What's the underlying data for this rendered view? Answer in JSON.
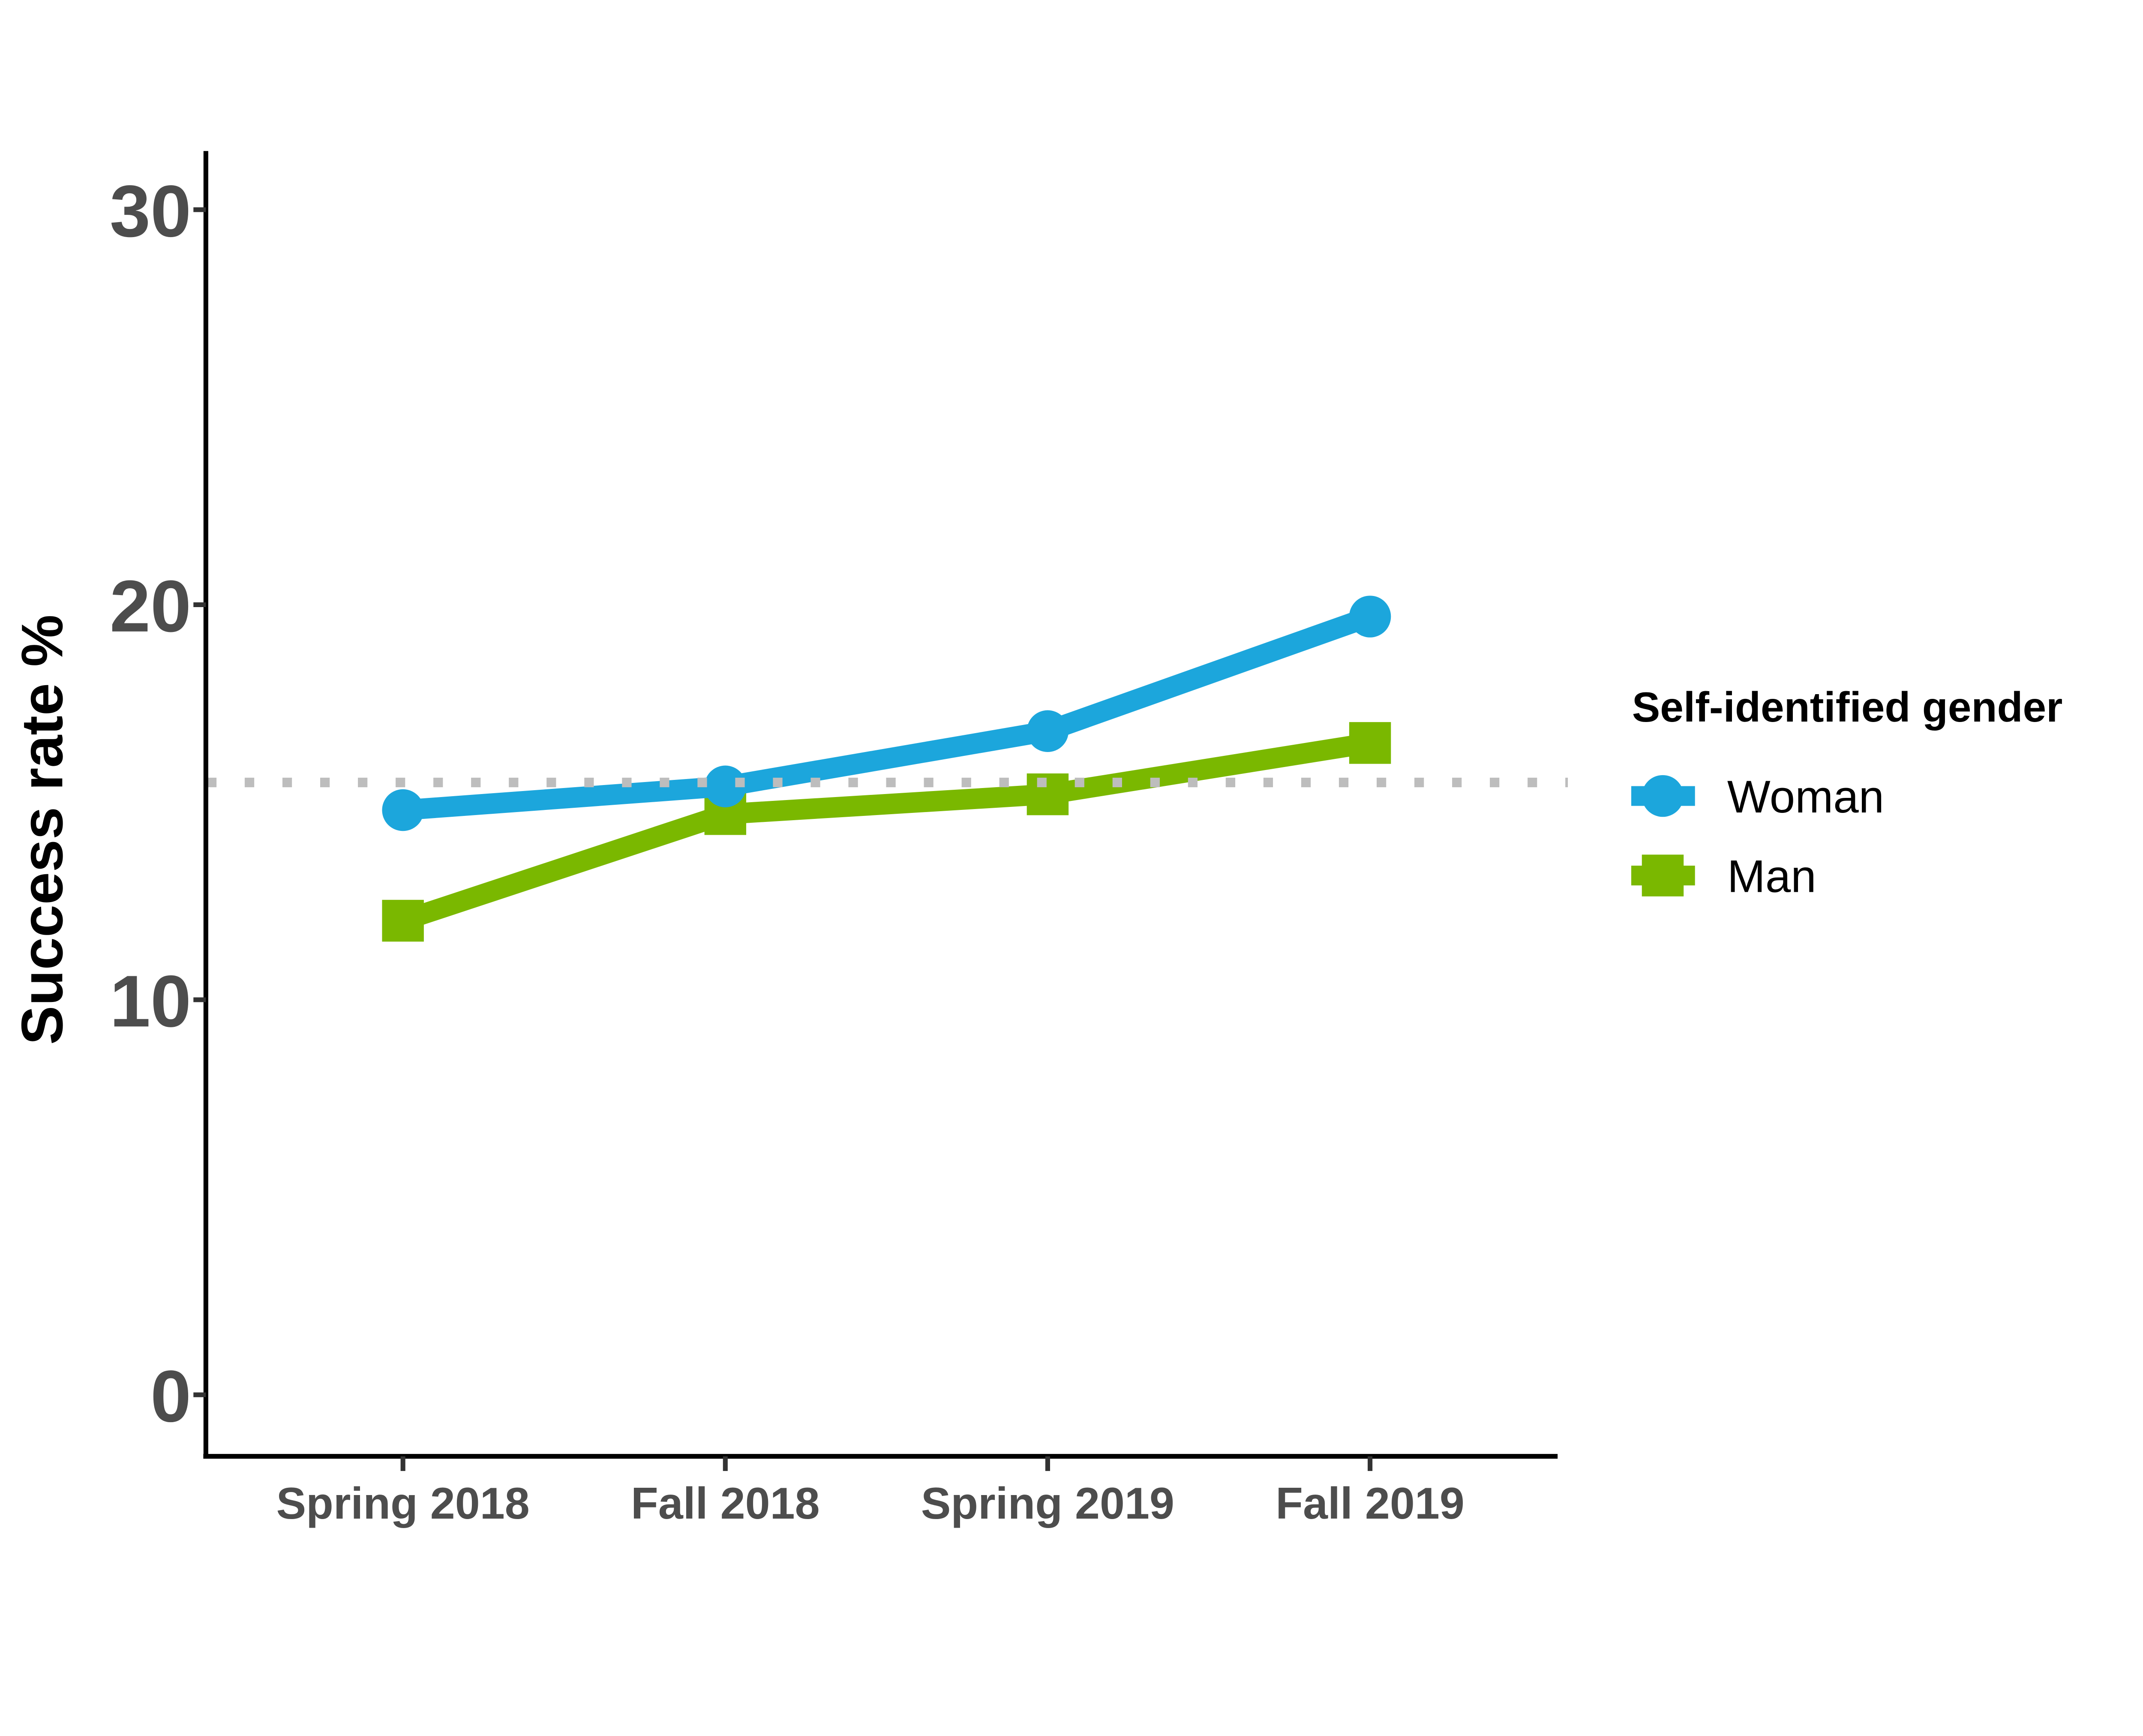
{
  "chart_data": {
    "type": "line",
    "categories": [
      "Spring 2018",
      "Fall 2018",
      "Spring 2019",
      "Fall 2019"
    ],
    "series": [
      {
        "name": "Woman",
        "marker": "circle",
        "color": "#1CA6DC",
        "values": [
          14.8,
          15.4,
          16.8,
          19.7
        ]
      },
      {
        "name": "Man",
        "marker": "square",
        "color": "#7AB800",
        "values": [
          12.0,
          14.7,
          15.2,
          16.5
        ]
      }
    ],
    "title": "",
    "xlabel": "",
    "ylabel": "Success rate %",
    "y_ticks": [
      0,
      10,
      20,
      30
    ],
    "y_tick_labels": [
      "0",
      "10",
      "20",
      "30"
    ],
    "ylim": [
      -1.5,
      31
    ],
    "grid": false,
    "reference_line": {
      "value": 15.5,
      "style": "dotted",
      "color": "#BDBDBD"
    },
    "legend": {
      "title": "Self-identified gender",
      "position": "right",
      "entries": [
        "Woman",
        "Man"
      ]
    }
  },
  "colors": {
    "axis_line": "#000000",
    "tick_mark": "#333333",
    "tick_label": "#4D4D4D",
    "text": "#000000",
    "background": "#FFFFFF"
  }
}
